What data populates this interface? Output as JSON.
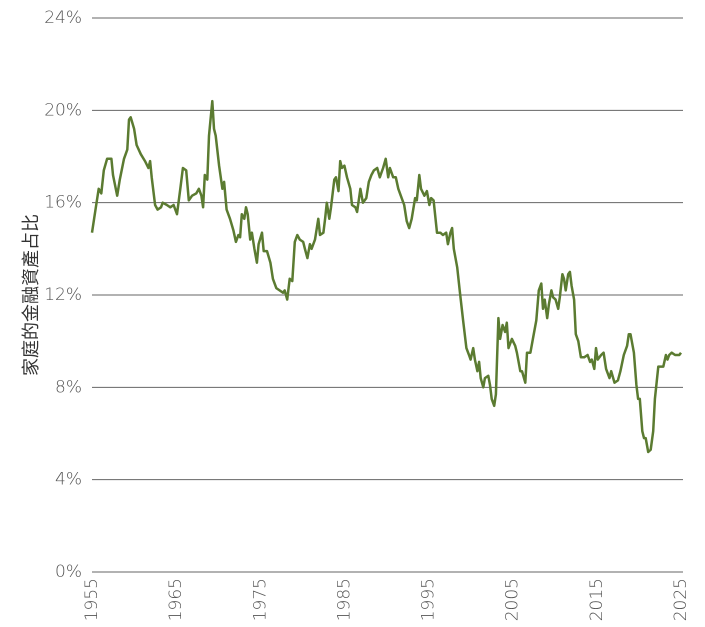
{
  "chart_data": {
    "type": "line",
    "y_label": "家庭的金融資產占比",
    "color": "#5b7b31",
    "grid": true,
    "xlim": [
      1955,
      2025
    ],
    "xticks": [
      1955,
      1965,
      1975,
      1985,
      1995,
      2005,
      2015,
      2025
    ],
    "ylim": [
      0,
      24
    ],
    "yticks": [
      {
        "value": 0,
        "label": "0%"
      },
      {
        "value": 4,
        "label": "4%"
      },
      {
        "value": 8,
        "label": "8%"
      },
      {
        "value": 12,
        "label": "12%"
      },
      {
        "value": 16,
        "label": "16%"
      },
      {
        "value": 20,
        "label": "20%"
      },
      {
        "value": 24,
        "label": "24%"
      }
    ],
    "x": [
      1955.0,
      1955.5,
      1955.8,
      1956.1,
      1956.4,
      1956.8,
      1957.3,
      1957.5,
      1958.0,
      1958.3,
      1958.8,
      1959.2,
      1959.4,
      1959.6,
      1960.0,
      1960.3,
      1960.8,
      1961.3,
      1961.7,
      1961.9,
      1962.1,
      1962.5,
      1962.8,
      1963.2,
      1963.4,
      1963.9,
      1964.3,
      1964.7,
      1965.1,
      1965.5,
      1965.8,
      1966.2,
      1966.5,
      1966.9,
      1967.4,
      1967.7,
      1968.0,
      1968.2,
      1968.4,
      1968.7,
      1968.9,
      1969.3,
      1969.5,
      1969.7,
      1970.1,
      1970.5,
      1970.7,
      1971.0,
      1971.4,
      1971.8,
      1972.1,
      1972.4,
      1972.6,
      1972.8,
      1973.1,
      1973.3,
      1973.5,
      1973.8,
      1974.0,
      1974.3,
      1974.6,
      1974.8,
      1975.2,
      1975.4,
      1975.8,
      1976.2,
      1976.5,
      1976.9,
      1977.3,
      1977.7,
      1977.9,
      1978.2,
      1978.5,
      1978.8,
      1979.1,
      1979.4,
      1979.7,
      1980.1,
      1980.3,
      1980.6,
      1980.9,
      1981.1,
      1981.5,
      1981.9,
      1982.1,
      1982.5,
      1982.7,
      1982.9,
      1983.2,
      1983.4,
      1983.8,
      1984.0,
      1984.3,
      1984.5,
      1984.7,
      1985.0,
      1985.3,
      1985.7,
      1985.9,
      1986.3,
      1986.5,
      1986.9,
      1987.2,
      1987.6,
      1987.9,
      1988.2,
      1988.5,
      1988.9,
      1989.2,
      1989.6,
      1989.9,
      1990.2,
      1990.4,
      1990.8,
      1991.1,
      1991.4,
      1991.7,
      1992.1,
      1992.4,
      1992.7,
      1993.0,
      1993.4,
      1993.6,
      1993.9,
      1994.1,
      1994.5,
      1994.8,
      1995.1,
      1995.3,
      1995.6,
      1996.0,
      1996.4,
      1996.7,
      1997.1,
      1997.3,
      1997.6,
      1997.8,
      1998.0,
      1998.4,
      1998.7,
      1999.1,
      1999.5,
      1999.8,
      2000.0,
      2000.3,
      2000.5,
      2000.8,
      2001.0,
      2001.2,
      2001.5,
      2001.7,
      2002.1,
      2002.3,
      2002.5,
      2002.8,
      2003.0,
      2003.3,
      2003.5,
      2003.8,
      2004.1,
      2004.3,
      2004.5,
      2004.9,
      2005.3,
      2005.5,
      2005.9,
      2006.1,
      2006.5,
      2006.7,
      2007.1,
      2007.4,
      2007.8,
      2008.1,
      2008.4,
      2008.6,
      2008.8,
      2009.1,
      2009.3,
      2009.6,
      2009.8,
      2010.1,
      2010.4,
      2010.6,
      2010.9,
      2011.1,
      2011.3,
      2011.6,
      2011.8,
      2012.0,
      2012.3,
      2012.5,
      2012.8,
      2013.1,
      2013.5,
      2013.9,
      2014.2,
      2014.4,
      2014.7,
      2014.9,
      2015.1,
      2015.5,
      2015.8,
      2016.1,
      2016.5,
      2016.7,
      2017.1,
      2017.5,
      2017.8,
      2018.2,
      2018.6,
      2018.8,
      2019.0,
      2019.4,
      2019.7,
      2019.9,
      2020.1,
      2020.4,
      2020.6,
      2020.8,
      2021.1,
      2021.4,
      2021.7,
      2021.9,
      2022.3,
      2022.7,
      2022.9,
      2023.2,
      2023.4,
      2023.6,
      2023.9,
      2024.3,
      2024.8,
      2025.0
    ],
    "values": [
      14.7,
      15.9,
      16.6,
      16.4,
      17.4,
      17.9,
      17.9,
      17.2,
      16.3,
      17.0,
      17.9,
      18.3,
      19.6,
      19.7,
      19.2,
      18.5,
      18.1,
      17.8,
      17.5,
      17.8,
      17.1,
      15.9,
      15.7,
      15.8,
      16.0,
      15.9,
      15.8,
      15.9,
      15.5,
      16.6,
      17.5,
      17.4,
      16.1,
      16.3,
      16.4,
      16.6,
      16.3,
      15.8,
      17.2,
      17.0,
      18.9,
      20.4,
      19.2,
      18.9,
      17.6,
      16.6,
      16.9,
      15.7,
      15.3,
      14.8,
      14.3,
      14.6,
      14.5,
      15.5,
      15.3,
      15.8,
      15.5,
      14.4,
      14.7,
      14.0,
      13.4,
      14.2,
      14.7,
      13.9,
      13.9,
      13.4,
      12.7,
      12.3,
      12.2,
      12.1,
      12.2,
      11.8,
      12.7,
      12.6,
      14.3,
      14.6,
      14.4,
      14.3,
      14.0,
      13.6,
      14.2,
      14.0,
      14.4,
      15.3,
      14.6,
      14.7,
      15.3,
      16.0,
      15.3,
      15.8,
      17.0,
      17.1,
      16.5,
      17.8,
      17.5,
      17.6,
      17.1,
      16.6,
      15.9,
      15.8,
      15.6,
      16.6,
      16.0,
      16.2,
      16.9,
      17.2,
      17.4,
      17.5,
      17.1,
      17.5,
      17.9,
      17.1,
      17.5,
      17.1,
      17.1,
      16.6,
      16.3,
      15.9,
      15.2,
      14.9,
      15.3,
      16.2,
      16.1,
      17.2,
      16.6,
      16.3,
      16.5,
      15.9,
      16.2,
      16.1,
      14.7,
      14.7,
      14.6,
      14.7,
      14.2,
      14.7,
      14.9,
      14.0,
      13.2,
      12.2,
      10.9,
      9.7,
      9.4,
      9.2,
      9.7,
      9.2,
      8.7,
      9.1,
      8.4,
      8.0,
      8.4,
      8.5,
      8.1,
      7.5,
      7.2,
      7.7,
      11.0,
      10.1,
      10.7,
      10.4,
      10.8,
      9.7,
      10.1,
      9.8,
      9.5,
      8.7,
      8.7,
      8.2,
      9.5,
      9.5,
      10.1,
      10.9,
      12.2,
      12.5,
      11.4,
      11.8,
      11.0,
      11.6,
      12.2,
      11.9,
      11.8,
      11.4,
      11.9,
      12.9,
      12.7,
      12.2,
      12.9,
      13.0,
      12.4,
      11.8,
      10.3,
      10.0,
      9.3,
      9.3,
      9.4,
      9.1,
      9.2,
      8.8,
      9.7,
      9.2,
      9.4,
      9.5,
      8.8,
      8.4,
      8.7,
      8.2,
      8.3,
      8.7,
      9.4,
      9.8,
      10.3,
      10.3,
      9.5,
      8.1,
      7.5,
      7.5,
      6.1,
      5.8,
      5.8,
      5.2,
      5.3,
      6.1,
      7.5,
      8.9,
      8.9,
      8.9,
      9.4,
      9.2,
      9.4,
      9.5,
      9.4,
      9.4,
      9.5
    ]
  }
}
